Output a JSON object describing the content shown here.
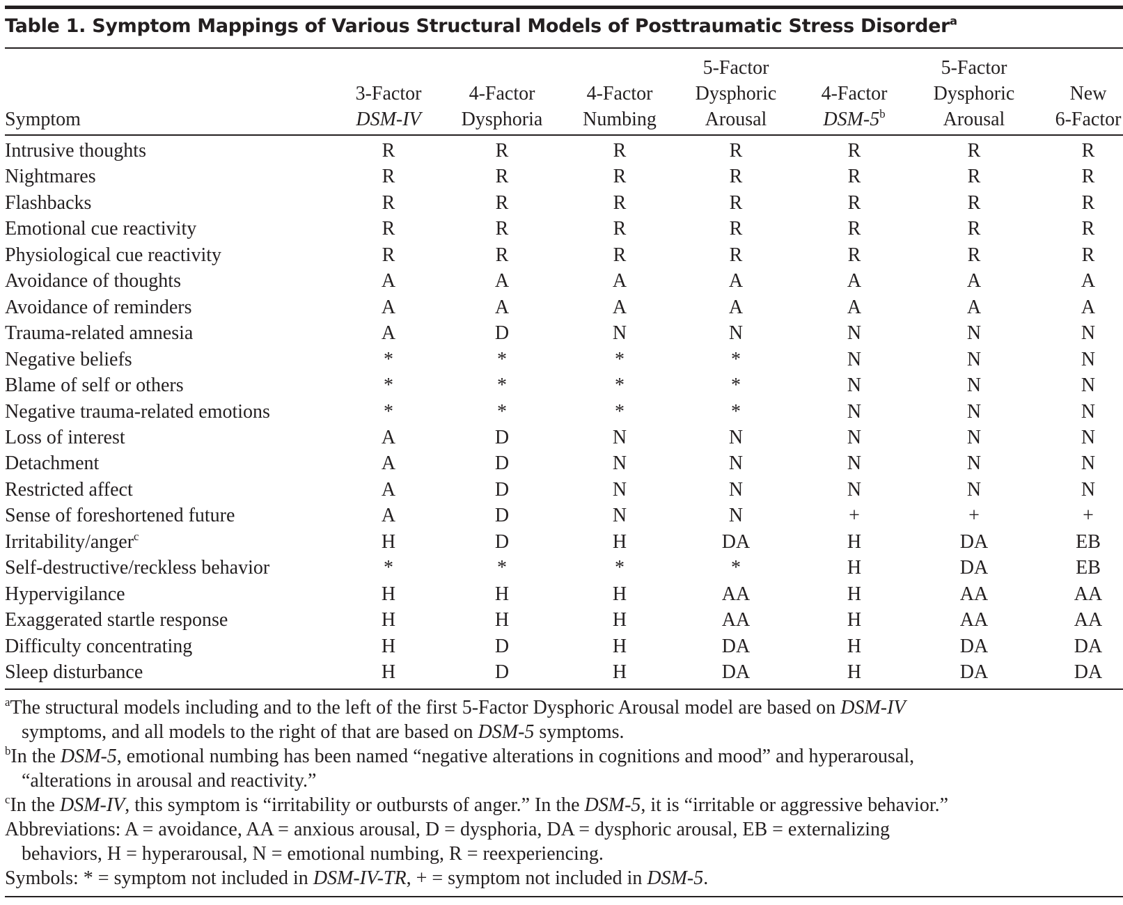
{
  "table": {
    "title": [
      {
        "text": "Table 1. Symptom Mappings of Various Structural Models of Posttraumatic Stress Disorder"
      },
      {
        "text": "a",
        "sup": true
      }
    ],
    "headers": [
      [
        [
          {
            "text": "Symptom"
          }
        ]
      ],
      [
        [
          {
            "text": "3-Factor"
          }
        ],
        [
          {
            "text": "DSM-IV",
            "italic": true
          }
        ]
      ],
      [
        [
          {
            "text": "4-Factor"
          }
        ],
        [
          {
            "text": "Dysphoria"
          }
        ]
      ],
      [
        [
          {
            "text": "4-Factor"
          }
        ],
        [
          {
            "text": "Numbing"
          }
        ]
      ],
      [
        [
          {
            "text": "5-Factor"
          }
        ],
        [
          {
            "text": "Dysphoric"
          }
        ],
        [
          {
            "text": "Arousal"
          }
        ]
      ],
      [
        [
          {
            "text": "4-Factor"
          }
        ],
        [
          {
            "text": "DSM-5",
            "italic": true
          },
          {
            "text": "b",
            "sup": true
          }
        ]
      ],
      [
        [
          {
            "text": "5-Factor"
          }
        ],
        [
          {
            "text": "Dysphoric"
          }
        ],
        [
          {
            "text": "Arousal"
          }
        ]
      ],
      [
        [
          {
            "text": "New"
          }
        ],
        [
          {
            "text": "6-Factor"
          }
        ]
      ]
    ],
    "rows": [
      {
        "symptom": [
          {
            "text": "Intrusive thoughts"
          }
        ],
        "values": [
          "R",
          "R",
          "R",
          "R",
          "R",
          "R",
          "R"
        ]
      },
      {
        "symptom": [
          {
            "text": "Nightmares"
          }
        ],
        "values": [
          "R",
          "R",
          "R",
          "R",
          "R",
          "R",
          "R"
        ]
      },
      {
        "symptom": [
          {
            "text": "Flashbacks"
          }
        ],
        "values": [
          "R",
          "R",
          "R",
          "R",
          "R",
          "R",
          "R"
        ]
      },
      {
        "symptom": [
          {
            "text": "Emotional cue reactivity"
          }
        ],
        "values": [
          "R",
          "R",
          "R",
          "R",
          "R",
          "R",
          "R"
        ]
      },
      {
        "symptom": [
          {
            "text": "Physiological cue reactivity"
          }
        ],
        "values": [
          "R",
          "R",
          "R",
          "R",
          "R",
          "R",
          "R"
        ]
      },
      {
        "symptom": [
          {
            "text": "Avoidance of thoughts"
          }
        ],
        "values": [
          "A",
          "A",
          "A",
          "A",
          "A",
          "A",
          "A"
        ]
      },
      {
        "symptom": [
          {
            "text": "Avoidance of reminders"
          }
        ],
        "values": [
          "A",
          "A",
          "A",
          "A",
          "A",
          "A",
          "A"
        ]
      },
      {
        "symptom": [
          {
            "text": "Trauma-related amnesia"
          }
        ],
        "values": [
          "A",
          "D",
          "N",
          "N",
          "N",
          "N",
          "N"
        ]
      },
      {
        "symptom": [
          {
            "text": "Negative beliefs"
          }
        ],
        "values": [
          "*",
          "*",
          "*",
          "*",
          "N",
          "N",
          "N"
        ]
      },
      {
        "symptom": [
          {
            "text": "Blame of self or others"
          }
        ],
        "values": [
          "*",
          "*",
          "*",
          "*",
          "N",
          "N",
          "N"
        ]
      },
      {
        "symptom": [
          {
            "text": "Negative trauma-related emotions"
          }
        ],
        "values": [
          "*",
          "*",
          "*",
          "*",
          "N",
          "N",
          "N"
        ]
      },
      {
        "symptom": [
          {
            "text": "Loss of interest"
          }
        ],
        "values": [
          "A",
          "D",
          "N",
          "N",
          "N",
          "N",
          "N"
        ]
      },
      {
        "symptom": [
          {
            "text": "Detachment"
          }
        ],
        "values": [
          "A",
          "D",
          "N",
          "N",
          "N",
          "N",
          "N"
        ]
      },
      {
        "symptom": [
          {
            "text": "Restricted affect"
          }
        ],
        "values": [
          "A",
          "D",
          "N",
          "N",
          "N",
          "N",
          "N"
        ]
      },
      {
        "symptom": [
          {
            "text": "Sense of foreshortened future"
          }
        ],
        "values": [
          "A",
          "D",
          "N",
          "N",
          "+",
          "+",
          "+"
        ]
      },
      {
        "symptom": [
          {
            "text": "Irritability/anger"
          },
          {
            "text": "c",
            "sup": true
          }
        ],
        "values": [
          "H",
          "D",
          "H",
          "DA",
          "H",
          "DA",
          "EB"
        ]
      },
      {
        "symptom": [
          {
            "text": "Self-destructive/reckless behavior"
          }
        ],
        "values": [
          "*",
          "*",
          "*",
          "*",
          "H",
          "DA",
          "EB"
        ]
      },
      {
        "symptom": [
          {
            "text": "Hypervigilance"
          }
        ],
        "values": [
          "H",
          "H",
          "H",
          "AA",
          "H",
          "AA",
          "AA"
        ]
      },
      {
        "symptom": [
          {
            "text": "Exaggerated startle response"
          }
        ],
        "values": [
          "H",
          "H",
          "H",
          "AA",
          "H",
          "AA",
          "AA"
        ]
      },
      {
        "symptom": [
          {
            "text": "Difficulty concentrating"
          }
        ],
        "values": [
          "H",
          "D",
          "H",
          "DA",
          "H",
          "DA",
          "DA"
        ]
      },
      {
        "symptom": [
          {
            "text": "Sleep disturbance"
          }
        ],
        "values": [
          "H",
          "D",
          "H",
          "DA",
          "H",
          "DA",
          "DA"
        ]
      }
    ],
    "footnotes": [
      [
        [
          {
            "text": "a",
            "sup": true
          },
          {
            "text": "The structural models including and to the left of the first 5-Factor Dysphoric Arousal model are based on "
          },
          {
            "text": "DSM-IV",
            "italic": true
          }
        ],
        [
          {
            "text": "symptoms, and all models to the right of that are based on "
          },
          {
            "text": "DSM-5",
            "italic": true
          },
          {
            "text": " symptoms."
          }
        ]
      ],
      [
        [
          {
            "text": "b",
            "sup": true
          },
          {
            "text": "In the "
          },
          {
            "text": "DSM-5",
            "italic": true
          },
          {
            "text": ", emotional numbing has been named “negative alterations in cognitions and mood” and hyperarousal,"
          }
        ],
        [
          {
            "text": "“alterations in arousal and reactivity.”"
          }
        ]
      ],
      [
        [
          {
            "text": "c",
            "sup": true
          },
          {
            "text": "In the "
          },
          {
            "text": "DSM-IV",
            "italic": true
          },
          {
            "text": ", this symptom is “irritability or outbursts of anger.” In the "
          },
          {
            "text": "DSM-5",
            "italic": true
          },
          {
            "text": ", it is “irritable or aggressive behavior.”"
          }
        ]
      ],
      [
        [
          {
            "text": "Abbreviations: A = avoidance, AA = anxious arousal, D = dysphoria, DA = dysphoric arousal, EB = externalizing"
          }
        ],
        [
          {
            "text": "behaviors, H = hyperarousal, N = emotional numbing, R = reexperiencing."
          }
        ]
      ],
      [
        [
          {
            "text": "Symbols: * = symptom not included in "
          },
          {
            "text": "DSM-IV-TR",
            "italic": true
          },
          {
            "text": ", + = symptom not included in "
          },
          {
            "text": "DSM-5",
            "italic": true
          },
          {
            "text": "."
          }
        ]
      ]
    ]
  }
}
